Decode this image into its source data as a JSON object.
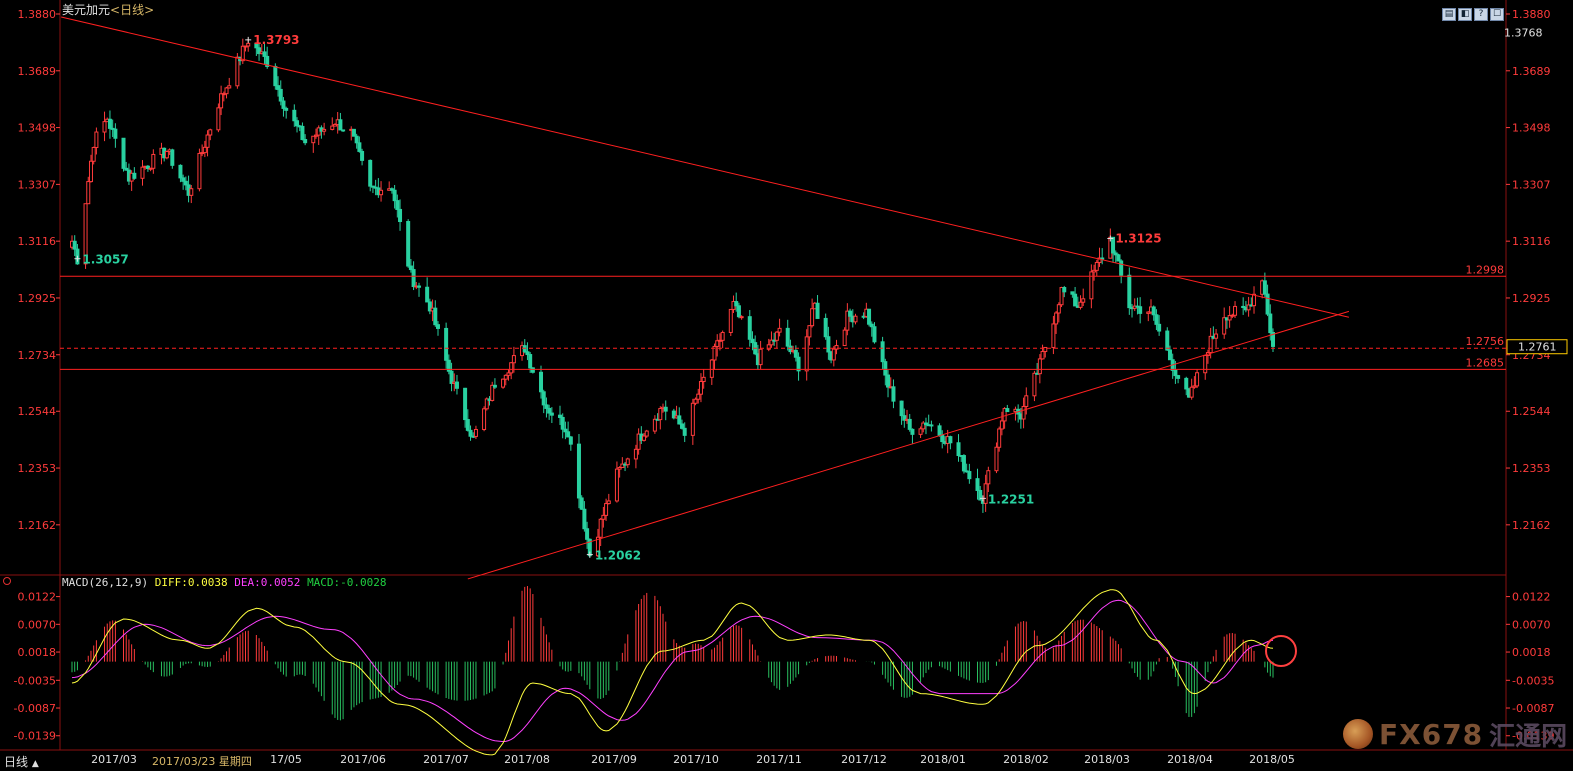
{
  "header": {
    "symbol": "美元加元",
    "period_label": "<日线>",
    "window_buttons": [
      "▤",
      "◧",
      "?",
      "☐"
    ]
  },
  "colors": {
    "background": "#000000",
    "up": "#ff3b3b",
    "down": "#29d1a0",
    "grid_border": "#8a1010",
    "axis_text": "#ff3b3b",
    "diff_line": "#ffff40",
    "dea_line": "#ff40ff",
    "macd_positive": "#ff3b3b",
    "macd_negative": "#29c060",
    "trendline": "#ff2020",
    "current_price_box": "#ffcc00"
  },
  "chart_data": [
    {
      "type": "candlestick",
      "title": "美元加元",
      "y_ticks": [
        "1.3880",
        "1.3689",
        "1.3498",
        "1.3307",
        "1.3116",
        "1.2925",
        "1.2734",
        "1.2544",
        "1.2353",
        "1.2162"
      ],
      "ylim": [
        1.2,
        1.388
      ],
      "x_ticks": [
        "2017/03",
        "17/05",
        "2017/06",
        "2017/07",
        "2017/08",
        "2017/09",
        "2017/10",
        "2017/11",
        "2017/12",
        "2018/01",
        "2018/02",
        "2018/03",
        "2018/04",
        "2018/05"
      ],
      "anchor_points": [
        {
          "date": "2017/03/01",
          "price": 1.3116
        },
        {
          "date": "2017/03/03",
          "price": 1.3057
        },
        {
          "date": "2017/03/09",
          "price": 1.345
        },
        {
          "date": "2017/03/14",
          "price": 1.353
        },
        {
          "date": "2017/03/22",
          "price": 1.333
        },
        {
          "date": "2017/04/05",
          "price": 1.342
        },
        {
          "date": "2017/04/13",
          "price": 1.328
        },
        {
          "date": "2017/04/24",
          "price": 1.358
        },
        {
          "date": "2017/05/05",
          "price": 1.3793
        },
        {
          "date": "2017/05/12",
          "price": 1.372
        },
        {
          "date": "2017/05/19",
          "price": 1.356
        },
        {
          "date": "2017/05/26",
          "price": 1.345
        },
        {
          "date": "2017/06/06",
          "price": 1.352
        },
        {
          "date": "2017/06/12",
          "price": 1.348
        },
        {
          "date": "2017/06/19",
          "price": 1.329
        },
        {
          "date": "2017/06/27",
          "price": 1.33
        },
        {
          "date": "2017/07/04",
          "price": 1.3
        },
        {
          "date": "2017/07/11",
          "price": 1.29
        },
        {
          "date": "2017/07/18",
          "price": 1.268
        },
        {
          "date": "2017/07/27",
          "price": 1.245
        },
        {
          "date": "2017/08/04",
          "price": 1.264
        },
        {
          "date": "2017/08/15",
          "price": 1.276
        },
        {
          "date": "2017/08/23",
          "price": 1.256
        },
        {
          "date": "2017/08/31",
          "price": 1.248
        },
        {
          "date": "2017/09/08",
          "price": 1.2062
        },
        {
          "date": "2017/09/18",
          "price": 1.233
        },
        {
          "date": "2017/09/28",
          "price": 1.248
        },
        {
          "date": "2017/10/05",
          "price": 1.256
        },
        {
          "date": "2017/10/13",
          "price": 1.248
        },
        {
          "date": "2017/10/20",
          "price": 1.265
        },
        {
          "date": "2017/10/31",
          "price": 1.29
        },
        {
          "date": "2017/11/09",
          "price": 1.272
        },
        {
          "date": "2017/11/17",
          "price": 1.281
        },
        {
          "date": "2017/11/24",
          "price": 1.27
        },
        {
          "date": "2017/11/30",
          "price": 1.29
        },
        {
          "date": "2017/12/06",
          "price": 1.273
        },
        {
          "date": "2017/12/12",
          "price": 1.286
        },
        {
          "date": "2017/12/19",
          "price": 1.288
        },
        {
          "date": "2017/12/27",
          "price": 1.263
        },
        {
          "date": "2018/01/04",
          "price": 1.248
        },
        {
          "date": "2018/01/10",
          "price": 1.251
        },
        {
          "date": "2018/01/19",
          "price": 1.244
        },
        {
          "date": "2018/01/31",
          "price": 1.2251
        },
        {
          "date": "2018/02/08",
          "price": 1.256
        },
        {
          "date": "2018/02/14",
          "price": 1.253
        },
        {
          "date": "2018/02/21",
          "price": 1.27
        },
        {
          "date": "2018/03/01",
          "price": 1.295
        },
        {
          "date": "2018/03/07",
          "price": 1.29
        },
        {
          "date": "2018/03/19",
          "price": 1.3125
        },
        {
          "date": "2018/03/26",
          "price": 1.29
        },
        {
          "date": "2018/04/03",
          "price": 1.288
        },
        {
          "date": "2018/04/11",
          "price": 1.27
        },
        {
          "date": "2018/04/17",
          "price": 1.258
        },
        {
          "date": "2018/04/24",
          "price": 1.276
        },
        {
          "date": "2018/04/30",
          "price": 1.287
        },
        {
          "date": "2018/05/08",
          "price": 1.288
        },
        {
          "date": "2018/05/14",
          "price": 1.2998
        },
        {
          "date": "2018/05/18",
          "price": 1.2761
        }
      ],
      "peak_labels": [
        {
          "date": "2017/03/03",
          "price": 1.3057,
          "text": "1.3057",
          "color": "#29d1a0",
          "below": true
        },
        {
          "date": "2017/05/05",
          "price": 1.3793,
          "text": "1.3793",
          "color": "#ff3b3b",
          "below": false
        },
        {
          "date": "2017/09/08",
          "price": 1.2062,
          "text": "1.2062",
          "color": "#29d1a0",
          "below": true
        },
        {
          "date": "2018/01/31",
          "price": 1.2251,
          "text": "1.2251",
          "color": "#29d1a0",
          "below": true
        },
        {
          "date": "2018/03/19",
          "price": 1.3125,
          "text": "1.3125",
          "color": "#ff3b3b",
          "below": false
        }
      ],
      "horizontal_levels": [
        {
          "price": 1.2998,
          "label": "1.2998",
          "style": "solid"
        },
        {
          "price": 1.2756,
          "label": "1.2756",
          "style": "dashed"
        },
        {
          "price": 1.2685,
          "label": "1.2685",
          "style": "solid"
        }
      ],
      "current_price": {
        "price": 1.2761,
        "label": "1.2761"
      },
      "top_right_value": "1.3768",
      "trendlines": [
        {
          "from": {
            "date": "2017/02/25",
            "price": 1.387
          },
          "to": {
            "date": "2018/06/15",
            "price": 1.286
          }
        },
        {
          "from": {
            "date": "2017/07/25",
            "price": 1.198
          },
          "to": {
            "date": "2018/06/15",
            "price": 1.288
          }
        }
      ]
    },
    {
      "type": "macd",
      "title": "MACD(26,12,9)",
      "legend": [
        {
          "label": "DIFF:0.0038",
          "color": "#ffff40"
        },
        {
          "label": "DEA:0.0052",
          "color": "#ff40ff"
        },
        {
          "label": "MACD:-0.0028",
          "color": "#20d040"
        }
      ],
      "y_ticks": [
        "0.0122",
        "0.0070",
        "0.0018",
        "-0.0035",
        "-0.0087",
        "-0.0139"
      ],
      "ylim": [
        -0.0162,
        0.014
      ],
      "diff_anchor_points": [
        {
          "date": "2017/03/01",
          "value": -0.004
        },
        {
          "date": "2017/03/20",
          "value": 0.008
        },
        {
          "date": "2017/04/10",
          "value": 0.004
        },
        {
          "date": "2017/04/20",
          "value": 0.0025
        },
        {
          "date": "2017/05/08",
          "value": 0.01
        },
        {
          "date": "2017/05/22",
          "value": 0.0065
        },
        {
          "date": "2017/06/10",
          "value": 0.0
        },
        {
          "date": "2017/06/30",
          "value": -0.008
        },
        {
          "date": "2017/08/03",
          "value": -0.0175
        },
        {
          "date": "2017/08/18",
          "value": -0.004
        },
        {
          "date": "2017/09/01",
          "value": -0.006
        },
        {
          "date": "2017/09/14",
          "value": -0.013
        },
        {
          "date": "2017/10/05",
          "value": 0.002
        },
        {
          "date": "2017/10/20",
          "value": 0.004
        },
        {
          "date": "2017/11/03",
          "value": 0.011
        },
        {
          "date": "2017/11/20",
          "value": 0.004
        },
        {
          "date": "2017/12/05",
          "value": 0.005
        },
        {
          "date": "2017/12/20",
          "value": 0.004
        },
        {
          "date": "2018/01/08",
          "value": -0.006
        },
        {
          "date": "2018/01/31",
          "value": -0.008
        },
        {
          "date": "2018/02/20",
          "value": 0.003
        },
        {
          "date": "2018/03/20",
          "value": 0.0135
        },
        {
          "date": "2018/04/05",
          "value": 0.004
        },
        {
          "date": "2018/04/19",
          "value": -0.006
        },
        {
          "date": "2018/05/10",
          "value": 0.004
        },
        {
          "date": "2018/05/18",
          "value": 0.0025
        }
      ],
      "dea_anchor_points": [
        {
          "date": "2017/03/01",
          "value": -0.003
        },
        {
          "date": "2017/03/28",
          "value": 0.007
        },
        {
          "date": "2017/04/20",
          "value": 0.003
        },
        {
          "date": "2017/05/15",
          "value": 0.0085
        },
        {
          "date": "2017/06/05",
          "value": 0.006
        },
        {
          "date": "2017/07/05",
          "value": -0.007
        },
        {
          "date": "2017/08/07",
          "value": -0.015
        },
        {
          "date": "2017/08/30",
          "value": -0.005
        },
        {
          "date": "2017/09/20",
          "value": -0.011
        },
        {
          "date": "2017/10/15",
          "value": 0.002
        },
        {
          "date": "2017/11/08",
          "value": 0.0085
        },
        {
          "date": "2017/12/01",
          "value": 0.0045
        },
        {
          "date": "2017/12/22",
          "value": 0.004
        },
        {
          "date": "2018/01/15",
          "value": -0.006
        },
        {
          "date": "2018/02/05",
          "value": -0.006
        },
        {
          "date": "2018/02/28",
          "value": 0.003
        },
        {
          "date": "2018/03/22",
          "value": 0.0115
        },
        {
          "date": "2018/04/15",
          "value": 0.0
        },
        {
          "date": "2018/04/26",
          "value": -0.004
        },
        {
          "date": "2018/05/12",
          "value": 0.003
        },
        {
          "date": "2018/05/18",
          "value": 0.004
        }
      ]
    }
  ],
  "bottom_bar": {
    "period_tab": "日线",
    "period_arrow": "▲",
    "cursor_date": "2017/03/23",
    "cursor_weekday": "星期四"
  },
  "watermark": {
    "brand": "FX678",
    "cn": "汇通网"
  }
}
